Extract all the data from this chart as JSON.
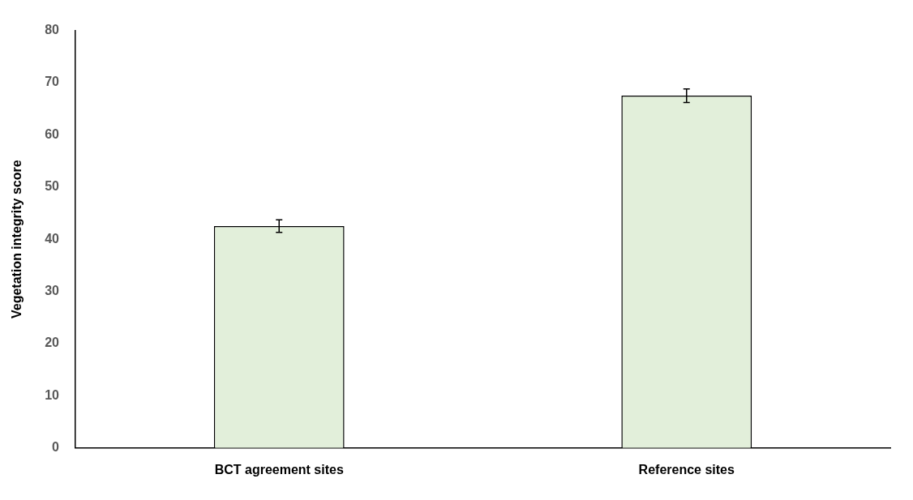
{
  "chart_data": {
    "type": "bar",
    "ylabel": "Vegetation integrity score",
    "categories": [
      "BCT agreement sites",
      "Reference sites"
    ],
    "values": [
      42.5,
      67.5
    ],
    "errors": [
      1.2,
      1.3
    ],
    "color": "#e2efda",
    "ylim": [
      0,
      80
    ],
    "yticks": [
      0,
      10,
      20,
      30,
      40,
      50,
      60,
      70,
      80
    ],
    "grid": false,
    "legend": false
  }
}
